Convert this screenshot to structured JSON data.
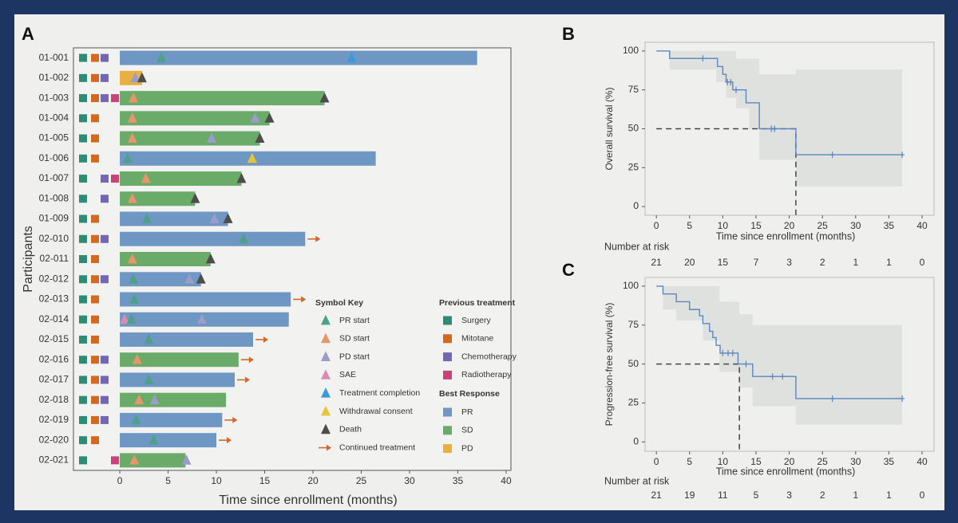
{
  "chart_data": [
    {
      "type": "swimmer",
      "panel_label": "A",
      "xlabel": "Time since enrollment (months)",
      "ylabel": "Participants",
      "xlim": [
        -4.8,
        40.5
      ],
      "xticks": [
        0,
        5,
        10,
        15,
        20,
        25,
        30,
        35,
        40
      ],
      "participants": [
        {
          "id": "01-001",
          "months": 37,
          "response": "PR",
          "previous": [
            true,
            true,
            true,
            false
          ],
          "events": [
            {
              "symbol": "PR start",
              "x": 4.3
            },
            {
              "symbol": "Treatment completion",
              "x": 24
            }
          ],
          "continued": false
        },
        {
          "id": "01-002",
          "months": 2.3,
          "response": "PD",
          "previous": [
            true,
            true,
            true,
            false
          ],
          "events": [
            {
              "symbol": "PD start",
              "x": 1.6
            },
            {
              "symbol": "Death",
              "x": 2.3
            }
          ],
          "continued": false
        },
        {
          "id": "01-003",
          "months": 21.2,
          "response": "SD",
          "previous": [
            true,
            true,
            true,
            true
          ],
          "events": [
            {
              "symbol": "SD start",
              "x": 1.4
            },
            {
              "symbol": "Death",
              "x": 21.2
            }
          ],
          "continued": false
        },
        {
          "id": "01-004",
          "months": 15.5,
          "response": "SD",
          "previous": [
            true,
            true,
            false,
            false
          ],
          "events": [
            {
              "symbol": "SD start",
              "x": 1.3
            },
            {
              "symbol": "PD start",
              "x": 14
            },
            {
              "symbol": "Death",
              "x": 15.5
            }
          ],
          "continued": false
        },
        {
          "id": "01-005",
          "months": 14.5,
          "response": "SD",
          "previous": [
            true,
            true,
            false,
            false
          ],
          "events": [
            {
              "symbol": "SD start",
              "x": 1.3
            },
            {
              "symbol": "PD start",
              "x": 9.5
            },
            {
              "symbol": "Death",
              "x": 14.5
            }
          ],
          "continued": false
        },
        {
          "id": "01-006",
          "months": 26.5,
          "response": "PR",
          "previous": [
            true,
            true,
            false,
            false
          ],
          "events": [
            {
              "symbol": "PR start",
              "x": 0.8
            },
            {
              "symbol": "Withdrawal consent",
              "x": 13.7
            }
          ],
          "continued": false
        },
        {
          "id": "01-007",
          "months": 12.6,
          "response": "SD",
          "previous": [
            true,
            false,
            true,
            true
          ],
          "events": [
            {
              "symbol": "SD start",
              "x": 2.7
            },
            {
              "symbol": "Death",
              "x": 12.6
            }
          ],
          "continued": false
        },
        {
          "id": "01-008",
          "months": 7.8,
          "response": "SD",
          "previous": [
            true,
            false,
            true,
            false
          ],
          "events": [
            {
              "symbol": "SD start",
              "x": 1.3
            },
            {
              "symbol": "Death",
              "x": 7.8
            }
          ],
          "continued": false
        },
        {
          "id": "01-009",
          "months": 11.2,
          "response": "PR",
          "previous": [
            true,
            true,
            false,
            false
          ],
          "events": [
            {
              "symbol": "PR start",
              "x": 2.8
            },
            {
              "symbol": "PD start",
              "x": 9.8
            },
            {
              "symbol": "Death",
              "x": 11.2
            }
          ],
          "continued": false
        },
        {
          "id": "02-010",
          "months": 19.2,
          "response": "PR",
          "previous": [
            true,
            true,
            true,
            false
          ],
          "events": [
            {
              "symbol": "PR start",
              "x": 12.8
            }
          ],
          "continued": true
        },
        {
          "id": "02-011",
          "months": 9.4,
          "response": "SD",
          "previous": [
            true,
            true,
            false,
            false
          ],
          "events": [
            {
              "symbol": "SD start",
              "x": 1.3
            },
            {
              "symbol": "Death",
              "x": 9.4
            }
          ],
          "continued": false
        },
        {
          "id": "02-012",
          "months": 8.4,
          "response": "PR",
          "previous": [
            true,
            true,
            true,
            false
          ],
          "events": [
            {
              "symbol": "PR start",
              "x": 1.4
            },
            {
              "symbol": "PD start",
              "x": 7.2
            },
            {
              "symbol": "Death",
              "x": 8.4
            }
          ],
          "continued": false
        },
        {
          "id": "02-013",
          "months": 17.7,
          "response": "PR",
          "previous": [
            true,
            true,
            false,
            false
          ],
          "events": [
            {
              "symbol": "PR start",
              "x": 1.5
            }
          ],
          "continued": true
        },
        {
          "id": "02-014",
          "months": 17.5,
          "response": "PR",
          "previous": [
            true,
            true,
            false,
            false
          ],
          "events": [
            {
              "symbol": "SAE",
              "x": 0.5
            },
            {
              "symbol": "PR start",
              "x": 1.2
            },
            {
              "symbol": "PD start",
              "x": 8.5
            }
          ],
          "continued": false
        },
        {
          "id": "02-015",
          "months": 13.8,
          "response": "PR",
          "previous": [
            true,
            true,
            false,
            false
          ],
          "events": [
            {
              "symbol": "PR start",
              "x": 3
            }
          ],
          "continued": true
        },
        {
          "id": "02-016",
          "months": 12.3,
          "response": "SD",
          "previous": [
            true,
            true,
            true,
            false
          ],
          "events": [
            {
              "symbol": "SD start",
              "x": 1.8
            }
          ],
          "continued": true
        },
        {
          "id": "02-017",
          "months": 11.9,
          "response": "PR",
          "previous": [
            true,
            true,
            true,
            false
          ],
          "events": [
            {
              "symbol": "PR start",
              "x": 3
            }
          ],
          "continued": true
        },
        {
          "id": "02-018",
          "months": 11,
          "response": "SD",
          "previous": [
            true,
            true,
            true,
            false
          ],
          "events": [
            {
              "symbol": "SD start",
              "x": 2
            },
            {
              "symbol": "PD start",
              "x": 3.6
            }
          ],
          "continued": false
        },
        {
          "id": "02-019",
          "months": 10.6,
          "response": "PR",
          "previous": [
            true,
            true,
            true,
            false
          ],
          "events": [
            {
              "symbol": "PR start",
              "x": 1.7
            }
          ],
          "continued": true
        },
        {
          "id": "02-020",
          "months": 10,
          "response": "PR",
          "previous": [
            true,
            true,
            false,
            false
          ],
          "events": [
            {
              "symbol": "PR start",
              "x": 3.5
            }
          ],
          "continued": true
        },
        {
          "id": "02-021",
          "months": 6.8,
          "response": "SD",
          "previous": [
            true,
            false,
            false,
            true
          ],
          "events": [
            {
              "symbol": "SD start",
              "x": 1.5
            },
            {
              "symbol": "PD start",
              "x": 6.9
            }
          ],
          "continued": false
        }
      ],
      "symbol_key": {
        "title": "Symbol Key",
        "items": [
          {
            "name": "PR start",
            "color": "#4fa08a",
            "shape": "triangle"
          },
          {
            "name": "SD start",
            "color": "#e8956a",
            "shape": "triangle"
          },
          {
            "name": "PD start",
            "color": "#9b9cc9",
            "shape": "triangle"
          },
          {
            "name": "SAE",
            "color": "#d98ab5",
            "shape": "triangle"
          },
          {
            "name": "Treatment completion",
            "color": "#3a9ad9",
            "shape": "triangle"
          },
          {
            "name": "Withdrawal consent",
            "color": "#e6c43a",
            "shape": "triangle"
          },
          {
            "name": "Death",
            "color": "#4d4d4d",
            "shape": "triangle"
          },
          {
            "name": "Continued treatment",
            "color": "#d2692a",
            "shape": "arrow"
          }
        ]
      },
      "previous_treatment": {
        "title": "Previous treatment",
        "items": [
          {
            "name": "Surgery",
            "color": "#2e8b74"
          },
          {
            "name": "Mitotane",
            "color": "#d2691e"
          },
          {
            "name": "Chemotherapy",
            "color": "#7566b3"
          },
          {
            "name": "Radiotherapy",
            "color": "#c8437a"
          }
        ]
      },
      "best_response": {
        "title": "Best Response",
        "items": [
          {
            "name": "PR",
            "color": "#6f97c4"
          },
          {
            "name": "SD",
            "color": "#6aab6a"
          },
          {
            "name": "PD",
            "color": "#e8b040"
          }
        ]
      }
    },
    {
      "type": "km",
      "panel_label": "B",
      "xlabel": "Time since enrollment (months)",
      "ylabel": "Overall survival (%)",
      "xlim": [
        -1.7,
        41.8
      ],
      "xticks": [
        0,
        5,
        10,
        15,
        20,
        25,
        30,
        35,
        40
      ],
      "ylim": [
        -5.6,
        105.6
      ],
      "yticks": [
        0,
        25,
        50,
        75,
        100
      ],
      "color": "#5b86c0",
      "ci_color": "#dcdedc",
      "x": [
        0,
        2,
        9.2,
        10,
        10.5,
        11.5,
        13.5,
        15.5,
        21,
        37
      ],
      "values": [
        100,
        95.2,
        90,
        85,
        80,
        75,
        66.7,
        50,
        33.3,
        33.3
      ],
      "censor_x": [
        7,
        10.7,
        11.2,
        12,
        17.3,
        17.8,
        26.5,
        37
      ],
      "censor_values": [
        95.2,
        80,
        80,
        75,
        50,
        50,
        33.3,
        33.3
      ],
      "ci_x": [
        0,
        2,
        9,
        10.5,
        12,
        14,
        15.5,
        21,
        37
      ],
      "ci_upper": [
        100,
        100,
        100,
        100,
        95,
        95,
        85,
        88,
        88
      ],
      "ci_lower": [
        100,
        88,
        80,
        70,
        63,
        50,
        30,
        13,
        13
      ],
      "reference": {
        "x": 21,
        "y": 50
      },
      "risk_label": "Number at risk",
      "at_risk": [
        21,
        20,
        15,
        7,
        3,
        2,
        1,
        1,
        0
      ]
    },
    {
      "type": "km",
      "panel_label": "C",
      "xlabel": "Time since enrollment (months)",
      "ylabel": "Progression-free survival (%)",
      "xlim": [
        -1.7,
        41.8
      ],
      "xticks": [
        0,
        5,
        10,
        15,
        20,
        25,
        30,
        35,
        40
      ],
      "ylim": [
        -6,
        105.6
      ],
      "yticks": [
        0,
        25,
        50,
        75,
        100
      ],
      "color": "#5b86c0",
      "ci_color": "#dcdedc",
      "x": [
        0,
        1,
        3,
        5,
        6.5,
        7,
        8,
        8.5,
        9,
        9.6,
        12.3,
        14.5,
        21,
        37
      ],
      "values": [
        100,
        95,
        90,
        85,
        81,
        76,
        71,
        67,
        62,
        57,
        50,
        42,
        27.8,
        27.8
      ],
      "censor_x": [
        10,
        10.8,
        11.5,
        13.5,
        17.5,
        19,
        26.5,
        37
      ],
      "censor_values": [
        57,
        57,
        57,
        50,
        42,
        42,
        27.8,
        27.8
      ],
      "ci_x": [
        0,
        1,
        3,
        7,
        9.5,
        12.5,
        14.5,
        21,
        37
      ],
      "ci_upper": [
        100,
        100,
        100,
        100,
        90,
        82,
        75,
        75,
        75
      ],
      "ci_lower": [
        100,
        85,
        78,
        65,
        45,
        35,
        23,
        11,
        11
      ],
      "reference": {
        "x": 12.5,
        "y": 50
      },
      "risk_label": "Number at risk",
      "at_risk": [
        21,
        19,
        11,
        5,
        3,
        2,
        1,
        1,
        0
      ]
    }
  ]
}
